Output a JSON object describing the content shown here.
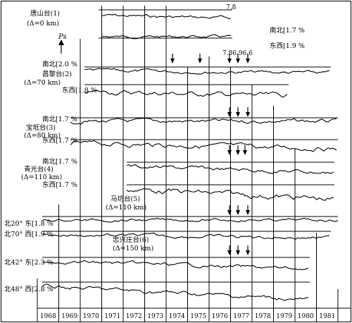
{
  "chart_data": {
    "type": "line",
    "title": "",
    "xlabel": "",
    "ylabel": "",
    "x_axis": {
      "years": [
        "1968",
        "1969",
        "1970",
        "1971",
        "1972",
        "1973",
        "1974",
        "1975",
        "1976",
        "1977",
        "1978",
        "1979",
        "1980",
        "1981"
      ]
    },
    "stations": [
      {
        "name": "唐山台(1)",
        "distance": "(Δ=0 km)"
      },
      {
        "name": "昌黎台(2)",
        "distance": "(Δ=70 km)"
      },
      {
        "name": "宝坻台(3)",
        "distance": "(Δ=80 km)"
      },
      {
        "name": "青光台(4)",
        "distance": "(Δ=110 km)"
      },
      {
        "name": "马坊台(5)",
        "distance": "(Δ=110 km)"
      },
      {
        "name": "忠兴庄台(6)",
        "distance": "(Δ=150 km)"
      }
    ],
    "series_labels": [
      "南北[1.7 %",
      "东西[1.9 %",
      "南北[2.0 %",
      "东西[1.8 %",
      "南北[1.7 %",
      "东西[1.7 %",
      "南北[1.7 %",
      "东西[1.7 %",
      "北20° 东[1.8 %",
      "北70° 西[1.9 %",
      "北42° 东[2.3 %",
      "北48° 西[2.8 %"
    ],
    "ps_label": "Ps",
    "annotations": {
      "top": "7.8",
      "dates": "7.86.96.6"
    }
  }
}
